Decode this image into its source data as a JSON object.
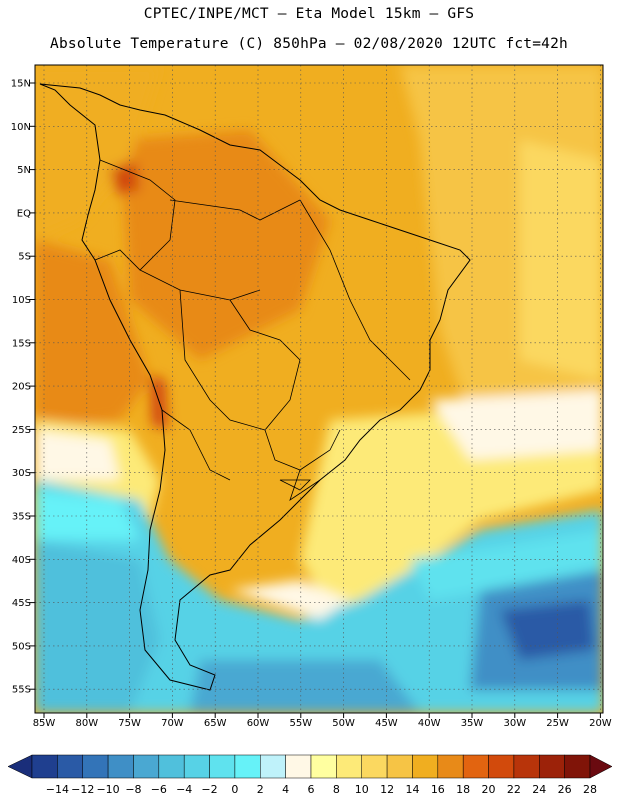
{
  "header": {
    "line1": "CPTEC/INPE/MCT –  Eta Model 15km – GFS",
    "line2": "Absolute Temperature (C) 850hPa – 02/08/2020 12UTC fct=42h"
  },
  "map": {
    "lat_labels": [
      "15N",
      "10N",
      "5N",
      "EQ",
      "5S",
      "10S",
      "15S",
      "20S",
      "25S",
      "30S",
      "35S",
      "40S",
      "45S",
      "50S",
      "55S"
    ],
    "lon_labels": [
      "85W",
      "80W",
      "75W",
      "70W",
      "65W",
      "60W",
      "55W",
      "50W",
      "45W",
      "40W",
      "35W",
      "30W",
      "25W",
      "20W"
    ],
    "grid": "dotted"
  },
  "colorbar": {
    "labels": [
      "-14",
      "-12",
      "-10",
      "-8",
      "-6",
      "-4",
      "-2",
      "0",
      "2",
      "4",
      "6",
      "8",
      "10",
      "12",
      "14",
      "16",
      "18",
      "20",
      "22",
      "24",
      "26",
      "28"
    ],
    "colors": [
      "#1f3f8f",
      "#2a5aa6",
      "#3374b8",
      "#3f8fc6",
      "#4aa8d2",
      "#50c0dc",
      "#57d2e6",
      "#5fe2ee",
      "#66f2f8",
      "#bff2fa",
      "#fff8e6",
      "#ffffa0",
      "#fdea78",
      "#fbd860",
      "#f6c445",
      "#f0ae20",
      "#e88a18",
      "#e26410",
      "#d24a0c",
      "#b8340a",
      "#9c2209",
      "#801408"
    ],
    "unit": "C"
  }
}
